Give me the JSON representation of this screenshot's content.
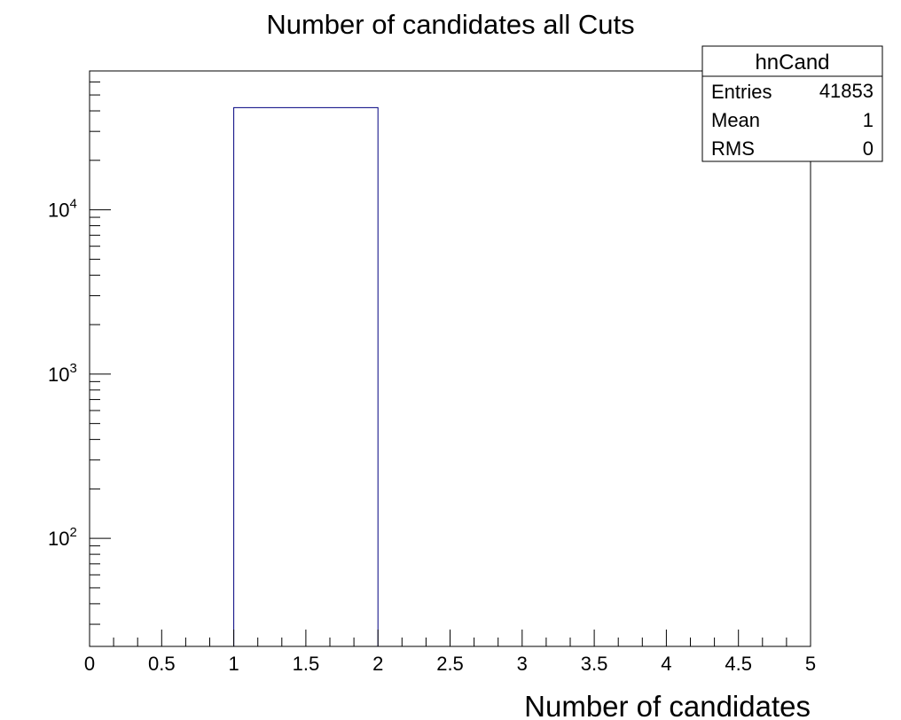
{
  "chart_data": {
    "type": "bar",
    "title": "Number of candidates all Cuts",
    "xlabel": "Number of candidates",
    "ylabel": "",
    "xlim": [
      0,
      5
    ],
    "ylim": [
      22,
      70000
    ],
    "y_scale": "log",
    "grid": false,
    "x_ticks": [
      "0",
      "0.5",
      "1",
      "1.5",
      "2",
      "2.5",
      "3",
      "3.5",
      "4",
      "4.5",
      "5"
    ],
    "y_ticks": [
      {
        "base": "10",
        "exp": "2",
        "value": 100
      },
      {
        "base": "10",
        "exp": "3",
        "value": 1000
      },
      {
        "base": "10",
        "exp": "4",
        "value": 10000
      }
    ],
    "bins": [
      {
        "x_low": 1,
        "x_high": 2,
        "value": 41853
      }
    ],
    "bar_color": "#000080",
    "stats_box": {
      "title": "hnCand",
      "rows": [
        {
          "label": "Entries",
          "value": "41853"
        },
        {
          "label": "Mean",
          "value": "1"
        },
        {
          "label": "RMS",
          "value": "0"
        }
      ],
      "placement": "top-right"
    }
  }
}
